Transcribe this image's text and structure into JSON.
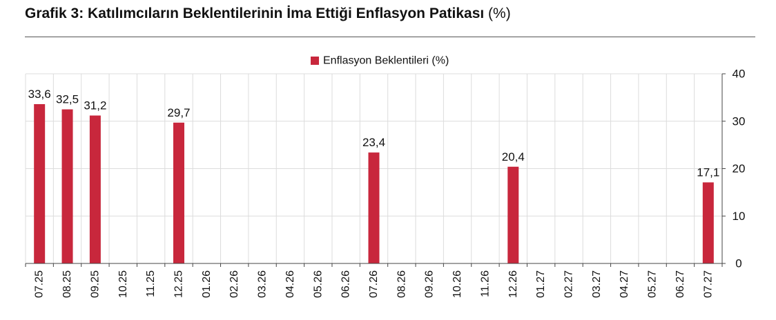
{
  "header": {
    "title": "Grafik 3: Katılımcıların Beklentilerinin İma Ettiği Enflasyon Patikası",
    "unit": "(%)"
  },
  "chart_data": {
    "type": "bar",
    "title": "Grafik 3: Katılımcıların Beklentilerinin İma Ettiği Enflasyon Patikası (%)",
    "categories": [
      "07.25",
      "08.25",
      "09.25",
      "10.25",
      "11.25",
      "12.25",
      "01.26",
      "02.26",
      "03.26",
      "04.26",
      "05.26",
      "06.26",
      "07.26",
      "08.26",
      "09.26",
      "10.26",
      "11.26",
      "12.26",
      "01.27",
      "02.27",
      "03.27",
      "04.27",
      "05.27",
      "06.27",
      "07.27"
    ],
    "series": [
      {
        "name": "Enflasyon Beklentileri (%)",
        "values": [
          33.6,
          32.5,
          31.2,
          null,
          null,
          29.7,
          null,
          null,
          null,
          null,
          null,
          null,
          23.4,
          null,
          null,
          null,
          null,
          20.4,
          null,
          null,
          null,
          null,
          null,
          null,
          17.1
        ],
        "labels": [
          "33,6",
          "32,5",
          "31,2",
          "",
          "",
          "29,7",
          "",
          "",
          "",
          "",
          "",
          "",
          "23,4",
          "",
          "",
          "",
          "",
          "20,4",
          "",
          "",
          "",
          "",
          "",
          "",
          "17,1"
        ],
        "color": "#c8273c"
      }
    ],
    "yticks": [
      0,
      10,
      20,
      30,
      40
    ],
    "ylim": [
      0,
      40
    ],
    "y_axis_side": "right",
    "grid": true,
    "legend": "top-center"
  }
}
